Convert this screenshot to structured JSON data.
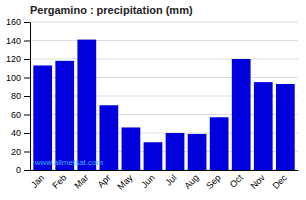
{
  "chart_data": {
    "type": "bar",
    "title": "Pergamino : precipitation (mm)",
    "categories": [
      "Jan",
      "Feb",
      "Mar",
      "Apr",
      "May",
      "Jun",
      "Jul",
      "Aug",
      "Sep",
      "Oct",
      "Nov",
      "Dec"
    ],
    "values": [
      113,
      118,
      141,
      70,
      46,
      30,
      40,
      39,
      57,
      120,
      95,
      93
    ],
    "color": "#0000DD",
    "ylim": [
      0,
      160
    ],
    "yticks": [
      0,
      20,
      40,
      60,
      80,
      100,
      120,
      140,
      160
    ],
    "grid": true,
    "annotations": [
      {
        "text": "www.allmetsat.com",
        "color": "#44aaff"
      }
    ]
  }
}
